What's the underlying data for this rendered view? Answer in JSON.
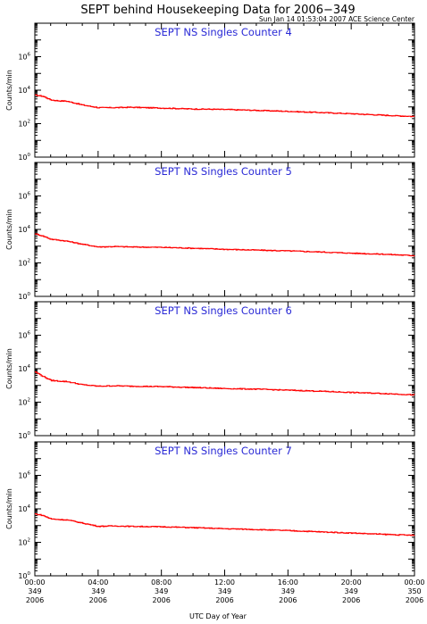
{
  "title": "SEPT behind Housekeeping Data for 2006−349",
  "subtitle": "Sun Jan 14 01:53:04 2007 ACE Science Center",
  "xlabel": "UTC Day of Year",
  "x_ticks": [
    {
      "time": "00:00",
      "doy": "349",
      "year": "2006"
    },
    {
      "time": "04:00",
      "doy": "349",
      "year": "2006"
    },
    {
      "time": "08:00",
      "doy": "349",
      "year": "2006"
    },
    {
      "time": "12:00",
      "doy": "349",
      "year": "2006"
    },
    {
      "time": "16:00",
      "doy": "349",
      "year": "2006"
    },
    {
      "time": "20:00",
      "doy": "349",
      "year": "2006"
    },
    {
      "time": "00:00",
      "doy": "350",
      "year": "2006"
    }
  ],
  "y_tick_labels": [
    {
      "base": "10",
      "exp": "0"
    },
    {
      "base": "10",
      "exp": "2"
    },
    {
      "base": "10",
      "exp": "4"
    },
    {
      "base": "10",
      "exp": "6"
    }
  ],
  "colors": {
    "series": "#ff0000",
    "panel_title": "#2a2ad6",
    "axes": "#000000"
  },
  "chart_data": [
    {
      "type": "line",
      "title": "SEPT NS Singles Counter 4",
      "ylabel": "Counts/min",
      "yscale": "log",
      "ylim": [
        1,
        100000000
      ],
      "xlim": [
        0,
        24
      ],
      "x_unit": "hours UTC on day 349",
      "x": [
        0,
        0.5,
        1,
        1.5,
        2,
        3,
        4,
        5,
        6,
        8,
        10,
        12,
        14,
        16,
        18,
        20,
        22,
        23,
        24
      ],
      "values": [
        5000,
        4300,
        2600,
        2300,
        2200,
        1300,
        900,
        900,
        950,
        850,
        750,
        700,
        620,
        540,
        460,
        390,
        320,
        290,
        270
      ]
    },
    {
      "type": "line",
      "title": "SEPT NS Singles Counter 5",
      "ylabel": "Counts/min",
      "yscale": "log",
      "ylim": [
        1,
        100000000
      ],
      "xlim": [
        0,
        24
      ],
      "x_unit": "hours UTC on day 349",
      "x": [
        0,
        0.5,
        1,
        1.5,
        2,
        3,
        4,
        5,
        6,
        8,
        10,
        12,
        14,
        16,
        18,
        20,
        22,
        23,
        24
      ],
      "values": [
        5500,
        4000,
        2600,
        2300,
        2000,
        1300,
        900,
        950,
        900,
        850,
        750,
        650,
        580,
        520,
        450,
        380,
        330,
        300,
        270
      ]
    },
    {
      "type": "line",
      "title": "SEPT NS Singles Counter 6",
      "ylabel": "Counts/min",
      "yscale": "log",
      "ylim": [
        1,
        100000000
      ],
      "xlim": [
        0,
        24
      ],
      "x_unit": "hours UTC on day 349",
      "x": [
        0,
        0.5,
        1,
        1.5,
        2,
        3,
        4,
        5,
        6,
        8,
        10,
        12,
        14,
        16,
        18,
        20,
        22,
        23,
        24
      ],
      "values": [
        6500,
        3500,
        2000,
        1800,
        1700,
        1100,
        900,
        950,
        900,
        850,
        750,
        650,
        600,
        520,
        450,
        380,
        330,
        300,
        270
      ]
    },
    {
      "type": "line",
      "title": "SEPT NS Singles Counter 7",
      "ylabel": "Counts/min",
      "yscale": "log",
      "ylim": [
        1,
        100000000
      ],
      "xlim": [
        0,
        24
      ],
      "x_unit": "hours UTC on day 349",
      "x": [
        0,
        0.5,
        1,
        1.5,
        2,
        3,
        4,
        5,
        6,
        8,
        10,
        12,
        14,
        16,
        18,
        20,
        22,
        23,
        24
      ],
      "values": [
        5000,
        4000,
        2500,
        2300,
        2200,
        1400,
        900,
        950,
        900,
        850,
        750,
        650,
        580,
        500,
        420,
        360,
        300,
        280,
        260
      ]
    }
  ]
}
